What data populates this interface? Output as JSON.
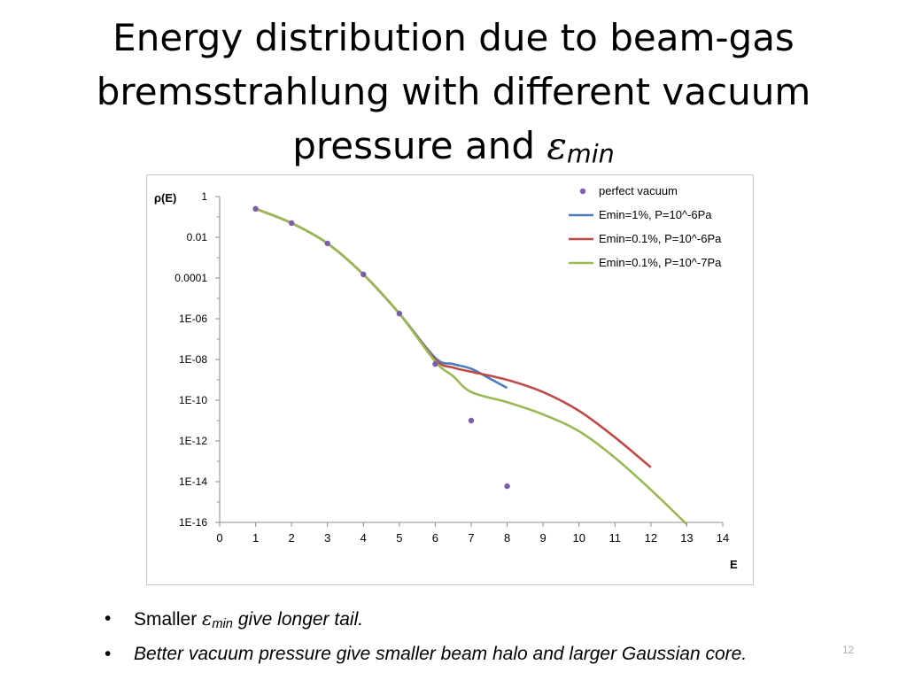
{
  "slide": {
    "title_line1": "Energy distribution due to beam-gas",
    "title_line2": "bremsstrahlung with different vacuum",
    "title_line3_prefix": "pressure and ",
    "title_symbol": "ε",
    "title_subscript": "min",
    "bullets": [
      {
        "symbol": "•",
        "prefix": "Smaller ",
        "eps": "ε",
        "sub": "min",
        "suffix": " give longer tail."
      },
      {
        "symbol": "•",
        "text": "Better  vacuum pressure give smaller beam halo and larger Gaussian core."
      }
    ],
    "page_number": "12"
  },
  "chart_data": {
    "type": "line",
    "ylabel": "ρ(E)",
    "xlabel": "E",
    "xlim": [
      0,
      14
    ],
    "ylim": [
      1e-16,
      1
    ],
    "yscale": "log",
    "x_ticks": [
      "0",
      "1",
      "2",
      "3",
      "4",
      "5",
      "6",
      "7",
      "8",
      "9",
      "10",
      "11",
      "12",
      "13",
      "14"
    ],
    "y_ticks": [
      "1",
      "0.01",
      "0.0001",
      "1E-06",
      "1E-08",
      "1E-10",
      "1E-12",
      "1E-14",
      "1E-16"
    ],
    "legend_position": "top-right",
    "grid": false,
    "series": [
      {
        "name": "perfect vacuum",
        "style": "markers",
        "color": "#7b5ea7",
        "x": [
          1,
          2,
          3,
          4,
          5,
          6,
          7,
          8
        ],
        "y": [
          0.25,
          0.05,
          0.005,
          0.00015,
          1.8e-06,
          6e-09,
          1e-11,
          6e-15
        ]
      },
      {
        "name": "Emin=1%, P=10^-6Pa",
        "style": "line",
        "color": "#4a7ebb",
        "x": [
          1,
          2,
          3,
          4,
          5,
          6,
          6.5,
          7,
          7.5,
          8
        ],
        "y": [
          0.25,
          0.05,
          0.005,
          0.00015,
          1.8e-06,
          1.2e-08,
          6e-09,
          3.5e-09,
          1.2e-09,
          4e-10
        ]
      },
      {
        "name": "Emin=0.1%, P=10^-6Pa",
        "style": "line",
        "color": "#be4b48",
        "x": [
          1,
          2,
          3,
          4,
          5,
          6,
          6.5,
          7,
          8,
          9,
          10,
          11,
          12
        ],
        "y": [
          0.25,
          0.05,
          0.005,
          0.00015,
          1.8e-06,
          1e-08,
          4e-09,
          2.5e-09,
          1e-09,
          2.5e-10,
          3e-11,
          1.5e-12,
          5e-14
        ]
      },
      {
        "name": "Emin=0.1%, P=10^-7Pa",
        "style": "line",
        "color": "#98b954",
        "x": [
          1,
          2,
          3,
          4,
          5,
          6,
          6.5,
          7,
          8,
          9,
          10,
          11,
          12,
          13
        ],
        "y": [
          0.25,
          0.05,
          0.005,
          0.00015,
          1.8e-06,
          8e-09,
          1.5e-09,
          2.5e-10,
          8e-11,
          2e-11,
          3e-12,
          1.5e-13,
          4e-15,
          8e-17
        ]
      }
    ]
  }
}
